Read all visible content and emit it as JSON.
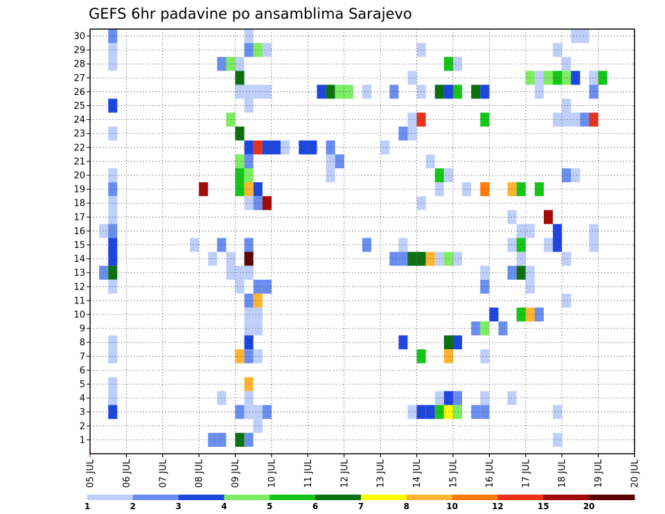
{
  "chart_data": {
    "type": "heatmap",
    "title": "GEFS 6hr padavine po ansamblima Sarajevo",
    "xlabel": "",
    "ylabel": "",
    "x_tick_labels": [
      "05 JUL",
      "06 JUL",
      "07 JUL",
      "08 JUL",
      "09 JUL",
      "10 JUL",
      "11 JUL",
      "12 JUL",
      "13 JUL",
      "14 JUL",
      "15 JUL",
      "16 JUL",
      "17 JUL",
      "18 JUL",
      "19 JUL",
      "20 JUL"
    ],
    "y_tick_labels": [
      "1",
      "2",
      "3",
      "4",
      "5",
      "6",
      "7",
      "8",
      "9",
      "10",
      "11",
      "12",
      "13",
      "14",
      "15",
      "16",
      "17",
      "18",
      "19",
      "20",
      "21",
      "22",
      "23",
      "24",
      "25",
      "26",
      "27",
      "28",
      "29",
      "30"
    ],
    "x_unit": "6-hour step from 05 JUL 00Z",
    "xlim": [
      0,
      60
    ],
    "ylim": [
      0,
      30.5
    ],
    "grid": true,
    "colorbar": {
      "ticks": [
        "1",
        "2",
        "3",
        "4",
        "5",
        "6",
        "7",
        "8",
        "10",
        "12",
        "15",
        "20"
      ],
      "colors": [
        "#bfcffb",
        "#6a8ef0",
        "#1d46e0",
        "#7dee62",
        "#15c618",
        "#0c7010",
        "#ffff00",
        "#ffb530",
        "#ff7a08",
        "#e8331a",
        "#a30a0a",
        "#5c0303"
      ]
    },
    "cells": [
      [
        2,
        30,
        1
      ],
      [
        2,
        29,
        0
      ],
      [
        2,
        28,
        0
      ],
      [
        2,
        25,
        2
      ],
      [
        2,
        23,
        0
      ],
      [
        2,
        20,
        0
      ],
      [
        2,
        19,
        1
      ],
      [
        2,
        18,
        0
      ],
      [
        2,
        17,
        0
      ],
      [
        1,
        16,
        0
      ],
      [
        2,
        16,
        1
      ],
      [
        2,
        15,
        2
      ],
      [
        2,
        14,
        2
      ],
      [
        1,
        13,
        1
      ],
      [
        2,
        13,
        5
      ],
      [
        2,
        12,
        0
      ],
      [
        2,
        8,
        0
      ],
      [
        2,
        7,
        0
      ],
      [
        2,
        5,
        0
      ],
      [
        2,
        4,
        0
      ],
      [
        2,
        3,
        2
      ],
      [
        14,
        28,
        1
      ],
      [
        15,
        28,
        3
      ],
      [
        16,
        28,
        0
      ],
      [
        15,
        24,
        3
      ],
      [
        15,
        14,
        0
      ],
      [
        14,
        15,
        1
      ],
      [
        13,
        14,
        0
      ],
      [
        14,
        4,
        0
      ],
      [
        13,
        1,
        1
      ],
      [
        14,
        1,
        1
      ],
      [
        16,
        27,
        5
      ],
      [
        16,
        26,
        0
      ],
      [
        16,
        23,
        5
      ],
      [
        16,
        21,
        3
      ],
      [
        16,
        20,
        4
      ],
      [
        16,
        19,
        4
      ],
      [
        16,
        13,
        0
      ],
      [
        16,
        12,
        0
      ],
      [
        16,
        7,
        7
      ],
      [
        16,
        3,
        1
      ],
      [
        15,
        13,
        0
      ],
      [
        16,
        1,
        5
      ],
      [
        17,
        30,
        0
      ],
      [
        17,
        29,
        1
      ],
      [
        18,
        29,
        3
      ],
      [
        19,
        29,
        0
      ],
      [
        17,
        26,
        0
      ],
      [
        17,
        25,
        0
      ],
      [
        17,
        22,
        2
      ],
      [
        18,
        22,
        9
      ],
      [
        19,
        22,
        2
      ],
      [
        20,
        22,
        2
      ],
      [
        21,
        22,
        0
      ],
      [
        17,
        21,
        1
      ],
      [
        17,
        20,
        3
      ],
      [
        18,
        19,
        2
      ],
      [
        17,
        19,
        7
      ],
      [
        17,
        18,
        0
      ],
      [
        18,
        18,
        1
      ],
      [
        19,
        18,
        10
      ],
      [
        17,
        15,
        1
      ],
      [
        17,
        14,
        11
      ],
      [
        17,
        13,
        0
      ],
      [
        18,
        12,
        1
      ],
      [
        19,
        12,
        1
      ],
      [
        17,
        11,
        1
      ],
      [
        18,
        11,
        7
      ],
      [
        17,
        10,
        0
      ],
      [
        18,
        10,
        0
      ],
      [
        17,
        9,
        0
      ],
      [
        18,
        9,
        0
      ],
      [
        17,
        8,
        2
      ],
      [
        17,
        7,
        1
      ],
      [
        18,
        7,
        0
      ],
      [
        17,
        5,
        7
      ],
      [
        17,
        4,
        0
      ],
      [
        17,
        3,
        0
      ],
      [
        18,
        3,
        0
      ],
      [
        19,
        3,
        1
      ],
      [
        18,
        2,
        0
      ],
      [
        17,
        1,
        1
      ],
      [
        18,
        26,
        0
      ],
      [
        19,
        26,
        0
      ],
      [
        12,
        19,
        10
      ],
      [
        11,
        15,
        0
      ],
      [
        23,
        22,
        2
      ],
      [
        24,
        22,
        2
      ],
      [
        25,
        26,
        2
      ],
      [
        26,
        26,
        5
      ],
      [
        27,
        26,
        3
      ],
      [
        28,
        26,
        3
      ],
      [
        30,
        26,
        0
      ],
      [
        33,
        26,
        1
      ],
      [
        26,
        21,
        0
      ],
      [
        27,
        21,
        1
      ],
      [
        26,
        20,
        0
      ],
      [
        30,
        15,
        1
      ],
      [
        26,
        22,
        1
      ],
      [
        32,
        22,
        0
      ],
      [
        34,
        15,
        0
      ],
      [
        33,
        14,
        1
      ],
      [
        34,
        14,
        1
      ],
      [
        35,
        14,
        5
      ],
      [
        36,
        14,
        5
      ],
      [
        37,
        14,
        7
      ],
      [
        38,
        14,
        0
      ],
      [
        39,
        14,
        3
      ],
      [
        40,
        14,
        0
      ],
      [
        34,
        8,
        2
      ],
      [
        35,
        24,
        0
      ],
      [
        35,
        23,
        0
      ],
      [
        34,
        23,
        1
      ],
      [
        35,
        27,
        0
      ],
      [
        36,
        29,
        0
      ],
      [
        36,
        26,
        0
      ],
      [
        36,
        24,
        9
      ],
      [
        36,
        18,
        0
      ],
      [
        37,
        21,
        0
      ],
      [
        36,
        7,
        4
      ],
      [
        35,
        3,
        0
      ],
      [
        36,
        3,
        2
      ],
      [
        37,
        3,
        2
      ],
      [
        38,
        26,
        5
      ],
      [
        39,
        26,
        2
      ],
      [
        40,
        26,
        4
      ],
      [
        42,
        26,
        5
      ],
      [
        43,
        26,
        2
      ],
      [
        39,
        28,
        4
      ],
      [
        40,
        28,
        0
      ],
      [
        38,
        20,
        4
      ],
      [
        39,
        20,
        0
      ],
      [
        38,
        19,
        0
      ],
      [
        41,
        19,
        0
      ],
      [
        43,
        19,
        8
      ],
      [
        43,
        24,
        4
      ],
      [
        38,
        3,
        4
      ],
      [
        39,
        3,
        6
      ],
      [
        40,
        3,
        3
      ],
      [
        39,
        4,
        2
      ],
      [
        40,
        4,
        1
      ],
      [
        39,
        8,
        5
      ],
      [
        40,
        8,
        2
      ],
      [
        39,
        7,
        7
      ],
      [
        38,
        4,
        0
      ],
      [
        43,
        4,
        0
      ],
      [
        42,
        3,
        1
      ],
      [
        43,
        3,
        1
      ],
      [
        43,
        7,
        0
      ],
      [
        43,
        12,
        1
      ],
      [
        43,
        13,
        0
      ],
      [
        42,
        9,
        1
      ],
      [
        43,
        9,
        3
      ],
      [
        43,
        13,
        0
      ],
      [
        44,
        10,
        2
      ],
      [
        46,
        4,
        0
      ],
      [
        45,
        9,
        1
      ],
      [
        46,
        13,
        1
      ],
      [
        47,
        13,
        5
      ],
      [
        48,
        13,
        0
      ],
      [
        48,
        12,
        0
      ],
      [
        47,
        14,
        0
      ],
      [
        46,
        15,
        0
      ],
      [
        47,
        15,
        4
      ],
      [
        47,
        16,
        0
      ],
      [
        48,
        16,
        0
      ],
      [
        46,
        17,
        0
      ],
      [
        47,
        10,
        4
      ],
      [
        48,
        10,
        7
      ],
      [
        49,
        10,
        1
      ],
      [
        46,
        19,
        7
      ],
      [
        47,
        19,
        4
      ],
      [
        49,
        19,
        4
      ],
      [
        51,
        29,
        0
      ],
      [
        52,
        28,
        0
      ],
      [
        53,
        30,
        0
      ],
      [
        54,
        30,
        0
      ],
      [
        52,
        27,
        3
      ],
      [
        53,
        27,
        2
      ],
      [
        55,
        27,
        0
      ],
      [
        51,
        24,
        0
      ],
      [
        52,
        24,
        0
      ],
      [
        53,
        24,
        0
      ],
      [
        54,
        24,
        1
      ],
      [
        55,
        24,
        9
      ],
      [
        52,
        25,
        0
      ],
      [
        52,
        20,
        1
      ],
      [
        53,
        20,
        0
      ],
      [
        50,
        17,
        10
      ],
      [
        51,
        16,
        2
      ],
      [
        50,
        15,
        0
      ],
      [
        51,
        15,
        2
      ],
      [
        52,
        14,
        0
      ],
      [
        52,
        11,
        0
      ],
      [
        51,
        1,
        0
      ],
      [
        50,
        27,
        3
      ],
      [
        49,
        26,
        0
      ],
      [
        51,
        27,
        4
      ],
      [
        56,
        27,
        4
      ],
      [
        55,
        26,
        1
      ],
      [
        55,
        16,
        0
      ],
      [
        55,
        15,
        0
      ],
      [
        51,
        3,
        0
      ],
      [
        48,
        27,
        3
      ],
      [
        49,
        27,
        0
      ]
    ]
  }
}
